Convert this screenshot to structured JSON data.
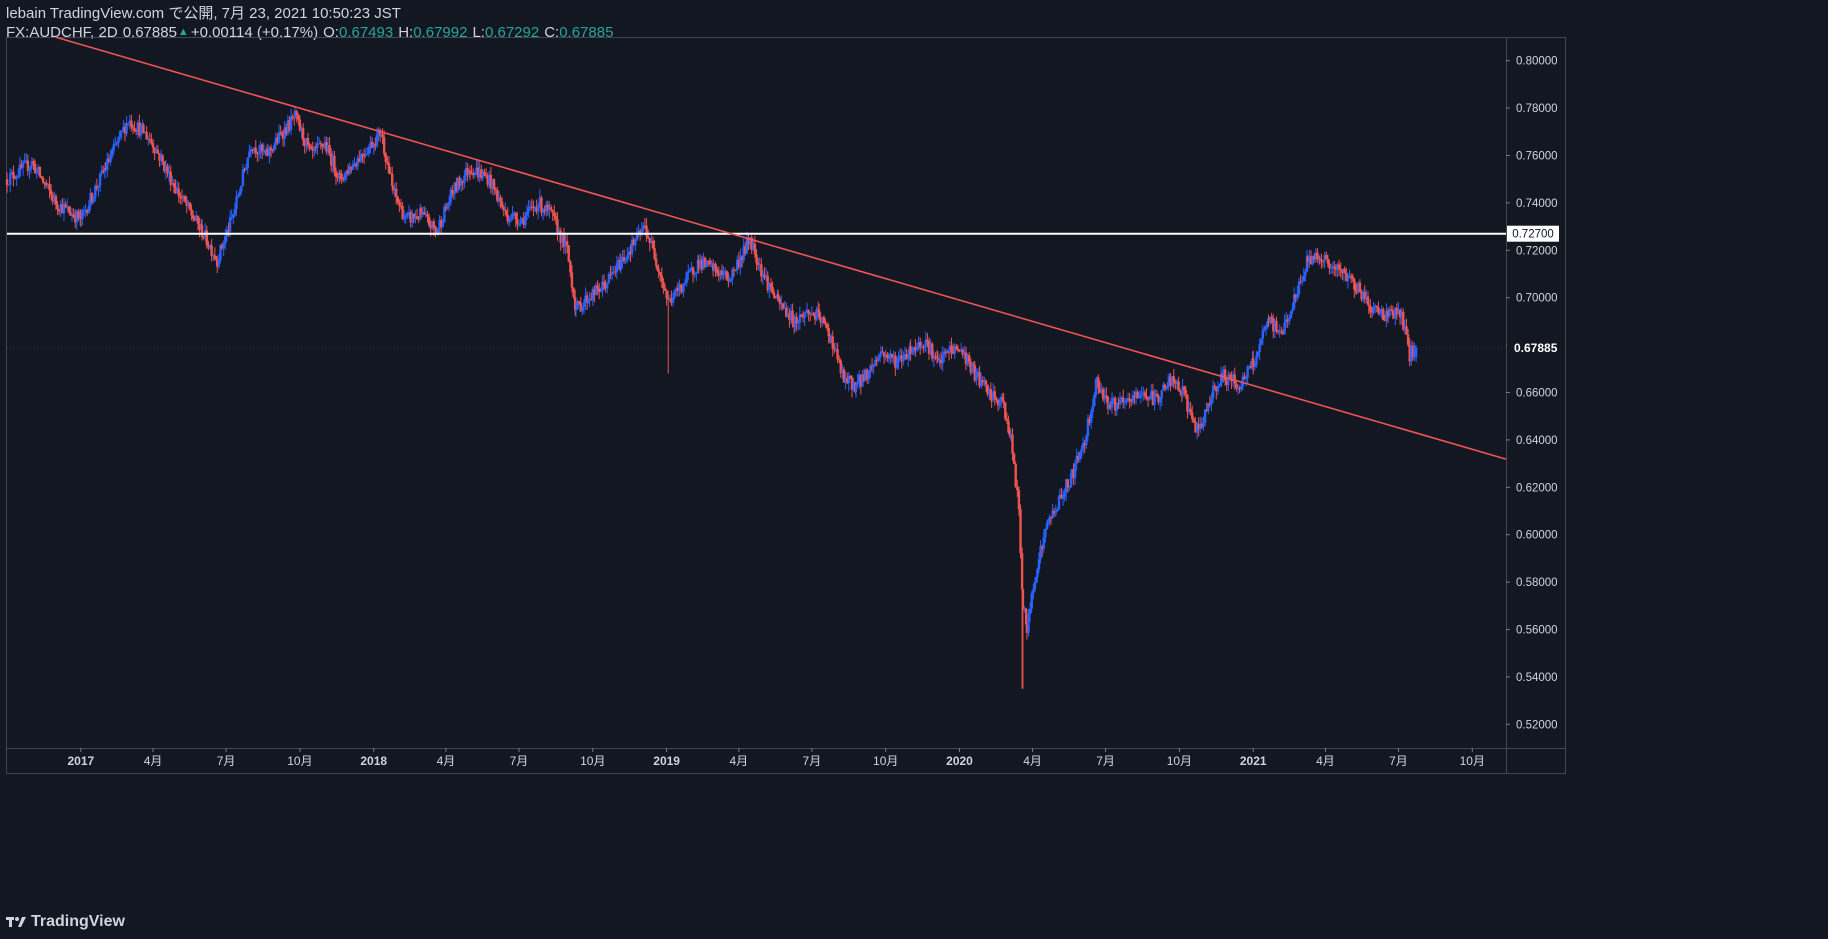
{
  "header": {
    "line1": "lebain TradingView.com で公開, 7月 23, 2021 10:50:23 JST",
    "symbol": "FX:AUDCHF, 2D",
    "last": "0.67885",
    "change": "+0.00114 (+0.17%)",
    "o_label": "O:",
    "o_value": "0.67493",
    "h_label": "H:",
    "h_value": "0.67992",
    "l_label": "L:",
    "l_value": "0.67292",
    "c_label": "C:",
    "c_value": "0.67885"
  },
  "footer": {
    "brand": "TradingView",
    "logo_icon": "tradingview-logo-icon"
  },
  "colors": {
    "background": "#131722",
    "up": "#2962ff",
    "down": "#ef5350",
    "trendline": "#f05454",
    "hline": "#ffffff",
    "axis_text": "#d1d4dc",
    "accent_green": "#26a69a"
  },
  "chart_data": {
    "type": "candlestick",
    "symbol": "FX:AUDCHF",
    "interval": "2D",
    "x_axis": {
      "type": "date",
      "range": [
        "2016-10-01",
        "2021-11-12"
      ],
      "ticks": [
        {
          "label": "2017",
          "date": "2017-01-01"
        },
        {
          "label": "4月",
          "date": "2017-04-01"
        },
        {
          "label": "7月",
          "date": "2017-07-01"
        },
        {
          "label": "10月",
          "date": "2017-10-01"
        },
        {
          "label": "2018",
          "date": "2018-01-01"
        },
        {
          "label": "4月",
          "date": "2018-04-01"
        },
        {
          "label": "7月",
          "date": "2018-07-01"
        },
        {
          "label": "10月",
          "date": "2018-10-01"
        },
        {
          "label": "2019",
          "date": "2019-01-01"
        },
        {
          "label": "4月",
          "date": "2019-04-01"
        },
        {
          "label": "7月",
          "date": "2019-07-01"
        },
        {
          "label": "10月",
          "date": "2019-10-01"
        },
        {
          "label": "2020",
          "date": "2020-01-01"
        },
        {
          "label": "4月",
          "date": "2020-04-01"
        },
        {
          "label": "7月",
          "date": "2020-07-01"
        },
        {
          "label": "10月",
          "date": "2020-10-01"
        },
        {
          "label": "2021",
          "date": "2021-01-01"
        },
        {
          "label": "4月",
          "date": "2021-04-01"
        },
        {
          "label": "7月",
          "date": "2021-07-01"
        },
        {
          "label": "10月",
          "date": "2021-10-01"
        }
      ]
    },
    "y_axis": {
      "range": [
        0.51,
        0.81
      ],
      "ticks": [
        "0.80000",
        "0.78000",
        "0.76000",
        "0.74000",
        "0.72000",
        "0.70000",
        "0.68000",
        "0.66000",
        "0.64000",
        "0.62000",
        "0.60000",
        "0.58000",
        "0.56000",
        "0.54000",
        "0.52000"
      ],
      "last_price_label": "0.67885",
      "hline_label": "0.72700"
    },
    "hline": {
      "value": 0.727
    },
    "trendline": {
      "start": {
        "date": "2016-12-01",
        "price": 0.8099
      },
      "end": {
        "date": "2021-11-12",
        "price": 0.6319
      }
    },
    "last_price": 0.67885,
    "closes": [
      [
        "2016-10-01",
        0.75
      ],
      [
        "2016-11-01",
        0.757
      ],
      [
        "2016-12-01",
        0.74
      ],
      [
        "2017-01-01",
        0.733
      ],
      [
        "2017-02-01",
        0.755
      ],
      [
        "2017-03-01",
        0.775
      ],
      [
        "2017-03-20",
        0.77
      ],
      [
        "2017-04-01",
        0.765
      ],
      [
        "2017-05-01",
        0.745
      ],
      [
        "2017-06-01",
        0.728
      ],
      [
        "2017-06-20",
        0.716
      ],
      [
        "2017-07-10",
        0.735
      ],
      [
        "2017-08-01",
        0.765
      ],
      [
        "2017-08-20",
        0.76
      ],
      [
        "2017-09-10",
        0.77
      ],
      [
        "2017-09-25",
        0.776
      ],
      [
        "2017-10-15",
        0.76
      ],
      [
        "2017-11-01",
        0.765
      ],
      [
        "2017-11-20",
        0.75
      ],
      [
        "2017-12-10",
        0.758
      ],
      [
        "2018-01-01",
        0.766
      ],
      [
        "2018-01-10",
        0.77
      ],
      [
        "2018-01-25",
        0.745
      ],
      [
        "2018-02-10",
        0.733
      ],
      [
        "2018-03-01",
        0.735
      ],
      [
        "2018-03-20",
        0.728
      ],
      [
        "2018-04-10",
        0.745
      ],
      [
        "2018-05-01",
        0.755
      ],
      [
        "2018-05-25",
        0.75
      ],
      [
        "2018-06-15",
        0.735
      ],
      [
        "2018-07-05",
        0.733
      ],
      [
        "2018-07-25",
        0.74
      ],
      [
        "2018-08-10",
        0.735
      ],
      [
        "2018-08-30",
        0.72
      ],
      [
        "2018-09-10",
        0.695
      ],
      [
        "2018-09-25",
        0.7
      ],
      [
        "2018-10-15",
        0.705
      ],
      [
        "2018-11-05",
        0.715
      ],
      [
        "2018-11-25",
        0.725
      ],
      [
        "2018-12-05",
        0.73
      ],
      [
        "2018-12-20",
        0.715
      ],
      [
        "2019-01-03",
        0.698
      ],
      [
        "2019-01-20",
        0.705
      ],
      [
        "2019-02-10",
        0.715
      ],
      [
        "2019-03-01",
        0.712
      ],
      [
        "2019-03-20",
        0.708
      ],
      [
        "2019-04-05",
        0.718
      ],
      [
        "2019-04-15",
        0.725
      ],
      [
        "2019-05-01",
        0.71
      ],
      [
        "2019-05-20",
        0.698
      ],
      [
        "2019-06-10",
        0.69
      ],
      [
        "2019-06-25",
        0.694
      ],
      [
        "2019-07-10",
        0.692
      ],
      [
        "2019-07-25",
        0.683
      ],
      [
        "2019-08-10",
        0.665
      ],
      [
        "2019-08-25",
        0.663
      ],
      [
        "2019-09-10",
        0.669
      ],
      [
        "2019-09-25",
        0.677
      ],
      [
        "2019-10-15",
        0.673
      ],
      [
        "2019-11-01",
        0.678
      ],
      [
        "2019-11-20",
        0.682
      ],
      [
        "2019-12-05",
        0.672
      ],
      [
        "2019-12-20",
        0.678
      ],
      [
        "2020-01-03",
        0.678
      ],
      [
        "2020-01-20",
        0.668
      ],
      [
        "2020-02-10",
        0.658
      ],
      [
        "2020-02-25",
        0.655
      ],
      [
        "2020-03-05",
        0.64
      ],
      [
        "2020-03-15",
        0.61
      ],
      [
        "2020-03-20",
        0.57
      ],
      [
        "2020-03-25",
        0.56
      ],
      [
        "2020-04-05",
        0.585
      ],
      [
        "2020-04-20",
        0.605
      ],
      [
        "2020-05-05",
        0.615
      ],
      [
        "2020-05-20",
        0.625
      ],
      [
        "2020-06-05",
        0.64
      ],
      [
        "2020-06-20",
        0.665
      ],
      [
        "2020-07-05",
        0.655
      ],
      [
        "2020-07-25",
        0.655
      ],
      [
        "2020-08-15",
        0.66
      ],
      [
        "2020-09-01",
        0.657
      ],
      [
        "2020-09-20",
        0.665
      ],
      [
        "2020-10-05",
        0.66
      ],
      [
        "2020-10-25",
        0.642
      ],
      [
        "2020-11-10",
        0.66
      ],
      [
        "2020-11-25",
        0.667
      ],
      [
        "2020-12-15",
        0.663
      ],
      [
        "2021-01-01",
        0.672
      ],
      [
        "2021-01-20",
        0.69
      ],
      [
        "2021-02-05",
        0.685
      ],
      [
        "2021-02-25",
        0.702
      ],
      [
        "2021-03-10",
        0.716
      ],
      [
        "2021-03-25",
        0.718
      ],
      [
        "2021-04-10",
        0.712
      ],
      [
        "2021-04-25",
        0.71
      ],
      [
        "2021-05-10",
        0.705
      ],
      [
        "2021-05-25",
        0.697
      ],
      [
        "2021-06-10",
        0.693
      ],
      [
        "2021-06-25",
        0.694
      ],
      [
        "2021-07-05",
        0.692
      ],
      [
        "2021-07-15",
        0.676
      ],
      [
        "2021-07-23",
        0.679
      ]
    ]
  }
}
